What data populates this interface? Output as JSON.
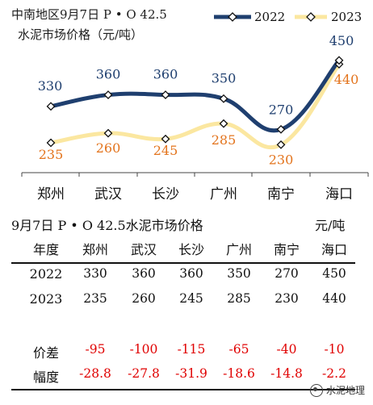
{
  "chart_data": {
    "type": "line",
    "title_line1": "中南地区9月7日 P • O 42.5",
    "title_line2": "水泥市场价格（元/吨）",
    "categories": [
      "郑州",
      "武汉",
      "长沙",
      "广州",
      "南宁",
      "海口"
    ],
    "series": [
      {
        "name": "2022",
        "values": [
          330,
          360,
          360,
          350,
          270,
          450
        ],
        "color": "#1f3f6f",
        "label_color": "#1f3f6f"
      },
      {
        "name": "2023",
        "values": [
          235,
          260,
          245,
          285,
          230,
          440
        ],
        "color": "#fbe7a0",
        "label_color": "#e3741d"
      }
    ],
    "legend_position": "top-right",
    "grid": false
  },
  "table": {
    "title": "9月7日 P • O 42.5水泥市场价格",
    "unit": "元/吨",
    "header": [
      "年度",
      "郑州",
      "武汉",
      "长沙",
      "广州",
      "南宁",
      "海口"
    ],
    "rows": [
      [
        "2022",
        "330",
        "360",
        "360",
        "350",
        "270",
        "450"
      ],
      [
        "2023",
        "235",
        "260",
        "245",
        "285",
        "230",
        "440"
      ],
      [
        "价差",
        "-95",
        "-100",
        "-115",
        "-65",
        "-40",
        "-10"
      ],
      [
        "幅度",
        "-28.8",
        "-27.8",
        "-31.9",
        "-18.6",
        "-14.8",
        "-2.2"
      ]
    ]
  },
  "watermark": "水泥地理",
  "colors": {
    "negative": "#e00000",
    "axis": "#444444"
  }
}
